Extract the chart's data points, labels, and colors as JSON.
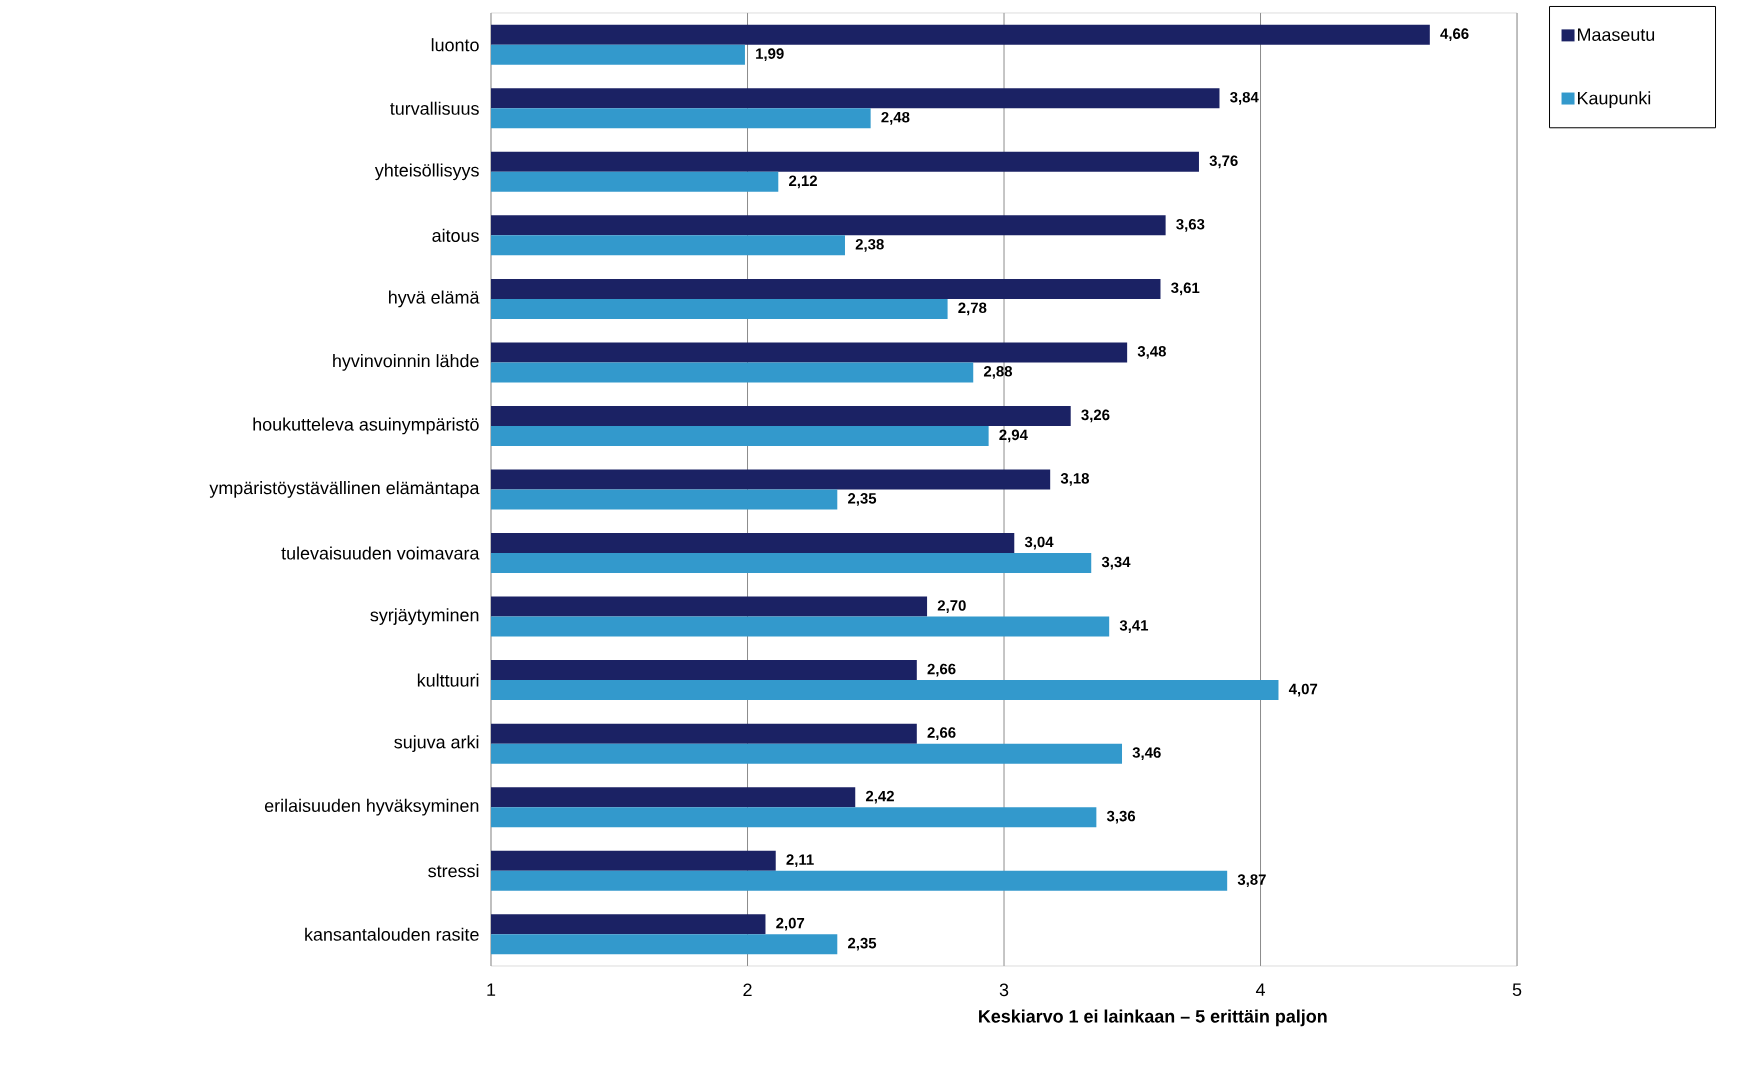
{
  "chart_data": {
    "type": "bar",
    "orientation": "horizontal",
    "xlabel": "Keskiarvo 1 ei lainkaan – 5 erittäin paljon",
    "categories": [
      "luonto",
      "turvallisuus",
      "yhteisöllisyys",
      "aitous",
      "hyvä elämä",
      "hyvinvoinnin lähde",
      "houkutteleva asuinympäristö",
      "ympäristöystävällinen elämäntapa",
      "tulevaisuuden voimavara",
      "syrjäytyminen",
      "kulttuuri",
      "sujuva arki",
      "erilaisuuden hyväksyminen",
      "stressi",
      "kansantalouden rasite"
    ],
    "series": [
      {
        "name": "Maaseutu",
        "color": "#1b2264",
        "values": [
          4.66,
          3.84,
          3.76,
          3.63,
          3.61,
          3.48,
          3.26,
          3.18,
          3.04,
          2.7,
          2.66,
          2.66,
          2.42,
          2.11,
          2.07
        ],
        "value_labels": [
          "4,66",
          "3,84",
          "3,76",
          "3,63",
          "3,61",
          "3,48",
          "3,26",
          "3,18",
          "3,04",
          "2,70",
          "2,66",
          "2,66",
          "2,42",
          "2,11",
          "2,07"
        ]
      },
      {
        "name": "Kaupunki",
        "color": "#3399cc",
        "values": [
          1.99,
          2.48,
          2.12,
          2.38,
          2.78,
          2.88,
          2.94,
          2.35,
          3.34,
          3.41,
          4.07,
          3.46,
          3.36,
          3.87,
          2.35
        ],
        "value_labels": [
          "1,99",
          "2,48",
          "2,12",
          "2,38",
          "2,78",
          "2,88",
          "2,94",
          "2,35",
          "3,34",
          "3,41",
          "4,07",
          "3,46",
          "3,36",
          "3,87",
          "2,35"
        ]
      }
    ],
    "xlim": [
      1,
      5
    ],
    "xticks": [
      1,
      2,
      3,
      4,
      5
    ],
    "grid": "x",
    "legend": "top right"
  }
}
